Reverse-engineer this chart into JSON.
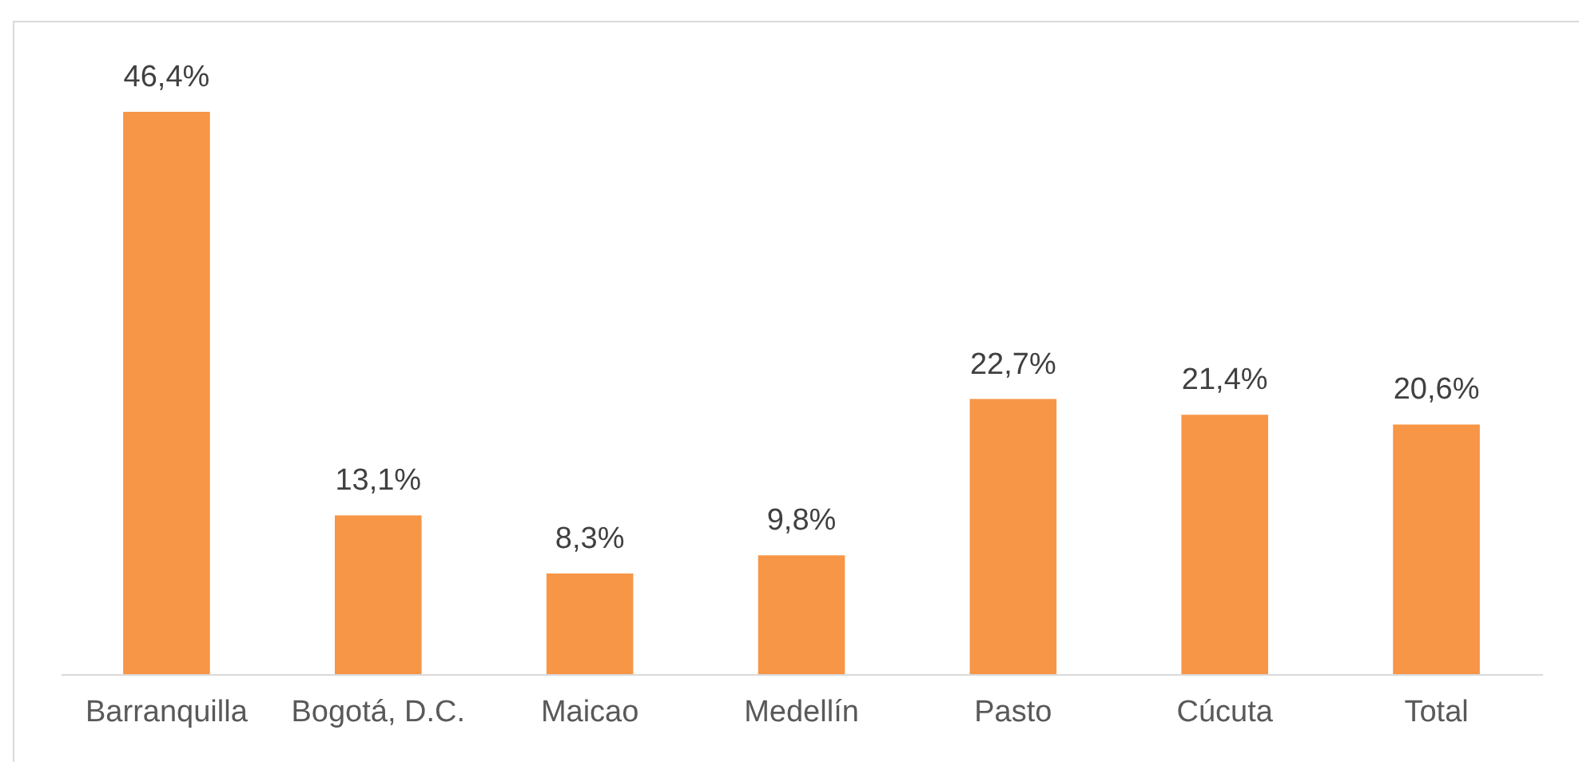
{
  "chart_data": {
    "type": "bar",
    "categories": [
      "Barranquilla",
      "Bogotá, D.C.",
      "Maicao",
      "Medellín",
      "Pasto",
      "Cúcuta",
      "Total"
    ],
    "values": [
      46.4,
      13.1,
      8.3,
      9.8,
      22.7,
      21.4,
      20.6
    ],
    "value_labels": [
      "46,4%",
      "13,1%",
      "8,3%",
      "9,8%",
      "22,7%",
      "21,4%",
      "20,6%"
    ],
    "color": "#f79646"
  }
}
